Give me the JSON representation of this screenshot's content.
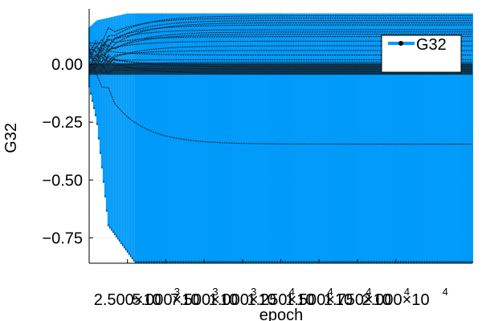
{
  "chart_data": {
    "type": "line",
    "xlabel": "epoch",
    "ylabel": "G32",
    "x_range": [
      0,
      25000
    ],
    "y_range": [
      -0.86,
      0.24
    ],
    "x_ticks": [
      {
        "value": 2500,
        "mantissa": "2.500×10",
        "exp": "3"
      },
      {
        "value": 5000,
        "mantissa": "5.000×10",
        "exp": "3"
      },
      {
        "value": 7500,
        "mantissa": "7.500×10",
        "exp": "3"
      },
      {
        "value": 10000,
        "mantissa": "1.000×10",
        "exp": "4"
      },
      {
        "value": 12500,
        "mantissa": "1.250×10",
        "exp": "4"
      },
      {
        "value": 15000,
        "mantissa": "1.500×10",
        "exp": "4"
      },
      {
        "value": 17500,
        "mantissa": "1.750×10",
        "exp": "4"
      },
      {
        "value": 20000,
        "mantissa": "2.000×10",
        "exp": "4"
      }
    ],
    "y_ticks": [
      {
        "value": 0.0,
        "label": "0.00"
      },
      {
        "value": -0.25,
        "label": "−0.25"
      },
      {
        "value": -0.5,
        "label": "−0.50"
      },
      {
        "value": -0.75,
        "label": "−0.75"
      }
    ],
    "series": [
      {
        "name": "G32",
        "color": "#009af9"
      }
    ],
    "envelope": {
      "upper": 0.22,
      "lower": -0.86
    },
    "traces_final": [
      0.21,
      0.2,
      0.19,
      0.18,
      0.17,
      0.15,
      0.14,
      0.13,
      0.12,
      0.1,
      0.08,
      0.06,
      0.04,
      0.02,
      0.01,
      0.0,
      -0.01,
      -0.02,
      -0.03,
      -0.04,
      -0.345
    ],
    "grid": true,
    "legend_position": "top-right"
  }
}
